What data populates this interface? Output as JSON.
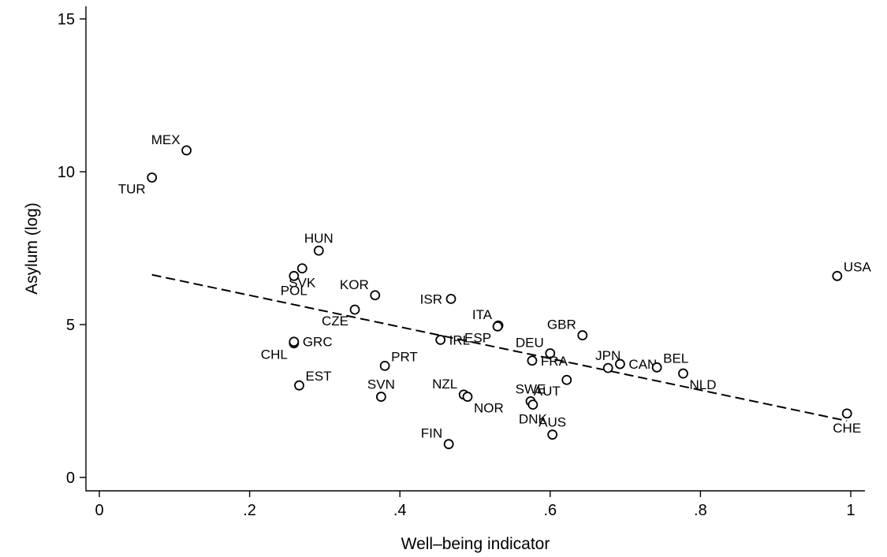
{
  "chart_data": {
    "type": "scatter",
    "xlabel": "Well–being indicator",
    "ylabel": "Asylum (log)",
    "xlim": [
      0,
      1
    ],
    "ylim": [
      0,
      15
    ],
    "xticks": [
      0,
      0.2,
      0.4,
      0.6,
      0.8,
      1
    ],
    "xtick_labels": [
      "0",
      ".2",
      ".4",
      ".6",
      ".8",
      "1"
    ],
    "yticks": [
      0,
      5,
      10,
      15
    ],
    "ytick_labels": [
      "0",
      "5",
      "10",
      "15"
    ],
    "grid": false,
    "legend": "none",
    "points": [
      {
        "label": "MEX",
        "x": 0.116,
        "y": 10.7,
        "pos": "ul"
      },
      {
        "label": "TUR",
        "x": 0.07,
        "y": 9.81,
        "pos": "bl"
      },
      {
        "label": "HUN",
        "x": 0.292,
        "y": 7.42,
        "pos": "u"
      },
      {
        "label": "SVK",
        "x": 0.27,
        "y": 6.84,
        "pos": "b"
      },
      {
        "label": "POL",
        "x": 0.259,
        "y": 6.59,
        "pos": "b"
      },
      {
        "label": "KOR",
        "x": 0.367,
        "y": 5.96,
        "pos": "ul"
      },
      {
        "label": "CZE",
        "x": 0.34,
        "y": 5.49,
        "pos": "bl"
      },
      {
        "label": "ISR",
        "x": 0.468,
        "y": 5.84,
        "pos": "l"
      },
      {
        "label": "ITA",
        "x": 0.531,
        "y": 4.97,
        "pos": "ul"
      },
      {
        "label": "CHL",
        "x": 0.259,
        "y": 4.39,
        "pos": "bl"
      },
      {
        "label": "GRC",
        "x": 0.259,
        "y": 4.44,
        "pos": "r"
      },
      {
        "label": "IRL",
        "x": 0.454,
        "y": 4.5,
        "pos": "r"
      },
      {
        "label": "PRT",
        "x": 0.38,
        "y": 3.65,
        "pos": "ur"
      },
      {
        "label": "ESP",
        "x": 0.53,
        "y": 4.94,
        "pos": "bl"
      },
      {
        "label": "EST",
        "x": 0.266,
        "y": 3.01,
        "pos": "ur"
      },
      {
        "label": "SVN",
        "x": 0.375,
        "y": 2.64,
        "pos": "u"
      },
      {
        "label": "GBR",
        "x": 0.643,
        "y": 4.65,
        "pos": "ul"
      },
      {
        "label": "DEU",
        "x": 0.6,
        "y": 4.06,
        "pos": "ul"
      },
      {
        "label": "FRA",
        "x": 0.576,
        "y": 3.82,
        "pos": "r"
      },
      {
        "label": "NZL",
        "x": 0.485,
        "y": 2.71,
        "pos": "ul"
      },
      {
        "label": "NOR",
        "x": 0.49,
        "y": 2.64,
        "pos": "br"
      },
      {
        "label": "FIN",
        "x": 0.465,
        "y": 1.09,
        "pos": "ul"
      },
      {
        "label": "AUT",
        "x": 0.622,
        "y": 3.19,
        "pos": "bl"
      },
      {
        "label": "SWE",
        "x": 0.574,
        "y": 2.49,
        "pos": "u"
      },
      {
        "label": "DNK",
        "x": 0.577,
        "y": 2.38,
        "pos": "b"
      },
      {
        "label": "AUS",
        "x": 0.603,
        "y": 1.4,
        "pos": "u"
      },
      {
        "label": "JPN",
        "x": 0.677,
        "y": 3.58,
        "pos": "u"
      },
      {
        "label": "CAN",
        "x": 0.693,
        "y": 3.71,
        "pos": "r"
      },
      {
        "label": "BEL",
        "x": 0.742,
        "y": 3.6,
        "pos": "ur"
      },
      {
        "label": "NLD",
        "x": 0.777,
        "y": 3.4,
        "pos": "br"
      },
      {
        "label": "USA",
        "x": 0.982,
        "y": 6.59,
        "pos": "ur"
      },
      {
        "label": "CHE",
        "x": 0.995,
        "y": 2.09,
        "pos": "b"
      }
    ],
    "fit_line": {
      "x": [
        0.07,
        0.995
      ],
      "y": [
        6.63,
        1.85
      ]
    }
  }
}
